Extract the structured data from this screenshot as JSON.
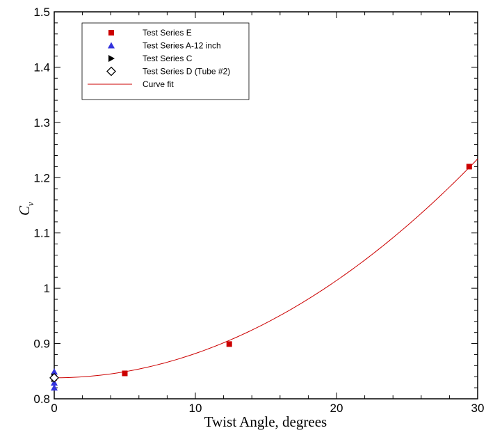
{
  "chart_data": {
    "type": "scatter",
    "xlabel": "Twist Angle, degrees",
    "ylabel_main": "C",
    "ylabel_sub": "v",
    "xlim": [
      0,
      30
    ],
    "ylim": [
      0.8,
      1.5
    ],
    "x_ticks": [
      0,
      10,
      20,
      30
    ],
    "x_tick_labels": [
      "0",
      "10",
      "20",
      "30"
    ],
    "y_ticks": [
      0.8,
      0.9,
      1,
      1.1,
      1.2,
      1.3,
      1.4,
      1.5
    ],
    "y_tick_labels": [
      "0.8",
      "0.9",
      "1",
      "1.1",
      "1.2",
      "1.3",
      "1.4",
      "1.5"
    ],
    "grid": false,
    "legend_position": "top-left",
    "series": [
      {
        "name": "Test Series E",
        "marker": "square",
        "color": "#cc0000",
        "points": [
          [
            0,
            0.838
          ],
          [
            5,
            0.846
          ],
          [
            12.4,
            0.899
          ],
          [
            29.4,
            1.22
          ]
        ]
      },
      {
        "name": "Test Series A-12 inch",
        "marker": "triangle-up",
        "color": "#3333dd",
        "points": [
          [
            0,
            0.849
          ],
          [
            0,
            0.843
          ],
          [
            0,
            0.829
          ],
          [
            0,
            0.82
          ]
        ]
      },
      {
        "name": "Test Series C",
        "marker": "triangle-right",
        "color": "#000000",
        "points": [
          [
            0,
            0.836
          ],
          [
            0,
            0.84
          ]
        ]
      },
      {
        "name": "Test Series D (Tube #2)",
        "marker": "diamond",
        "color": "#000000",
        "points": [
          [
            0,
            0.838
          ]
        ]
      },
      {
        "name": "Curve fit",
        "marker": "line",
        "color": "#cc0000",
        "fit": {
          "a": 0.838,
          "b": 0.0,
          "c": 0.00044
        }
      }
    ]
  }
}
